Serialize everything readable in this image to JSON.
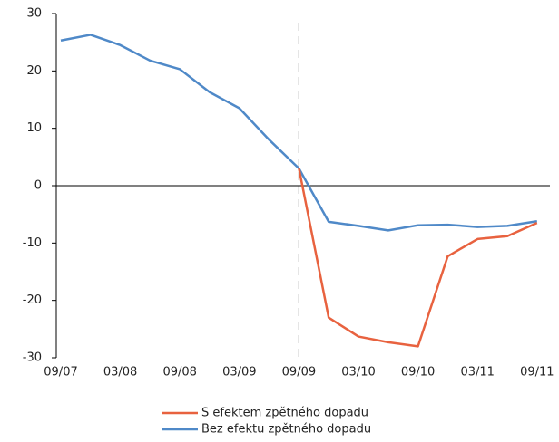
{
  "chart_data": {
    "type": "line",
    "categories": [
      "09/07",
      null,
      "03/08",
      null,
      "09/08",
      null,
      "03/09",
      null,
      "09/09",
      null,
      "03/10",
      null,
      "09/10",
      null,
      "03/11",
      null,
      "09/11"
    ],
    "series": [
      {
        "name": "S efektem zpětného dopadu",
        "color": "#e8623f",
        "values": [
          null,
          null,
          null,
          null,
          null,
          null,
          null,
          null,
          3,
          -23,
          -26.3,
          -27.3,
          -28,
          -12.3,
          -9.3,
          -8.8,
          -6.5
        ]
      },
      {
        "name": "Bez efektu zpětného dopadu",
        "color": "#4f89c8",
        "values": [
          25.3,
          26.3,
          24.5,
          21.8,
          20.3,
          16.3,
          13.5,
          8,
          3,
          -6.3,
          -7,
          -7.8,
          -6.9,
          -6.8,
          -7.2,
          -7,
          -6.2
        ]
      }
    ],
    "ylim": [
      -30,
      30
    ],
    "yticks": [
      -30,
      -20,
      -10,
      0,
      10,
      20,
      30
    ]
  }
}
